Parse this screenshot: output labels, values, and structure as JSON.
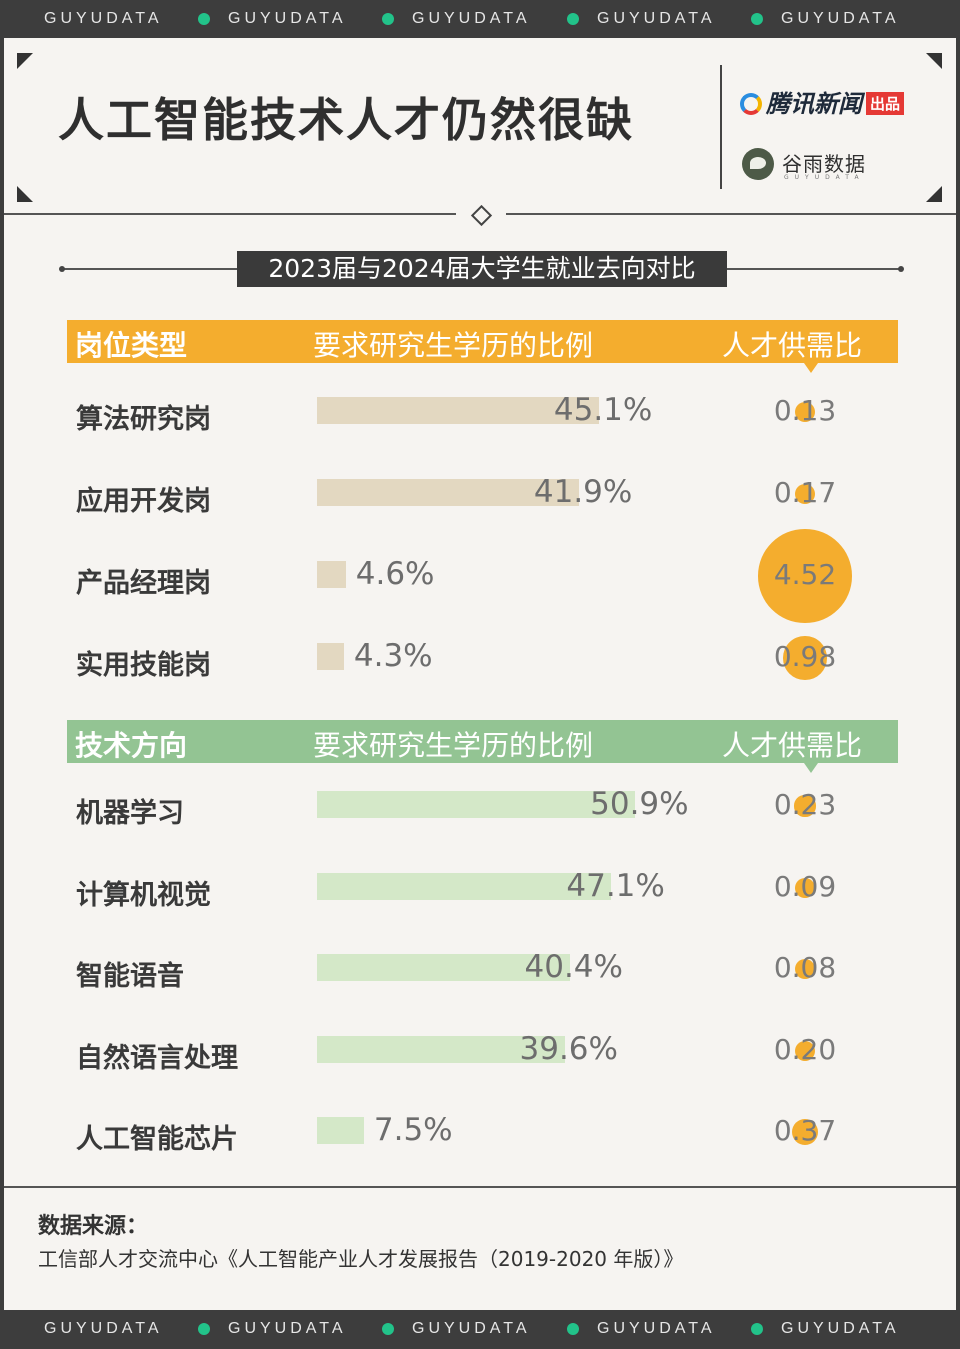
{
  "brand": "GUYUDATA",
  "title": "人工智能技术人才仍然很缺",
  "logos": {
    "tencent": "腾讯新闻",
    "tencent_badge": "出品",
    "guyu": "谷雨数据",
    "guyu_sub": "GUYUDATA"
  },
  "subtitle": "2023届与2024届大学生就业去向对比",
  "colors": {
    "orange": "#f4ad2e",
    "green": "#93c493",
    "bar_beige": "#e3d8c1",
    "bar_green": "#d4e8c8"
  },
  "section1": {
    "headers": {
      "category": "岗位类型",
      "ratio_label": "要求研究生学历的比例",
      "supply_label": "人才供需比"
    }
  },
  "section2": {
    "headers": {
      "category": "技术方向",
      "ratio_label": "要求研究生学历的比例",
      "supply_label": "人才供需比"
    }
  },
  "chart_data": [
    {
      "type": "bar",
      "title": "岗位类型",
      "categories": [
        "算法研究岗",
        "应用开发岗",
        "产品经理岗",
        "实用技能岗"
      ],
      "series": [
        {
          "name": "要求研究生学历的比例",
          "values": [
            45.1,
            41.9,
            4.6,
            4.3
          ],
          "labels": [
            "45.1%",
            "41.9%",
            "4.6%",
            "4.3%"
          ]
        },
        {
          "name": "人才供需比",
          "values": [
            0.13,
            0.17,
            4.52,
            0.98
          ],
          "labels": [
            "0.13",
            "0.17",
            "4.52",
            "0.98"
          ]
        }
      ]
    },
    {
      "type": "bar",
      "title": "技术方向",
      "categories": [
        "机器学习",
        "计算机视觉",
        "智能语音",
        "自然语言处理",
        "人工智能芯片"
      ],
      "series": [
        {
          "name": "要求研究生学历的比例",
          "values": [
            50.9,
            47.1,
            40.4,
            39.6,
            7.5
          ],
          "labels": [
            "50.9%",
            "47.1%",
            "40.4%",
            "39.6%",
            "7.5%"
          ]
        },
        {
          "name": "人才供需比",
          "values": [
            0.23,
            0.09,
            0.08,
            0.2,
            0.37
          ],
          "labels": [
            "0.23",
            "0.09",
            "0.08",
            "0.20",
            "0.37"
          ]
        }
      ]
    }
  ],
  "source": {
    "title": "数据来源：",
    "text": "工信部人才交流中心《人工智能产业人才发展报告（2019-2020 年版）》"
  }
}
